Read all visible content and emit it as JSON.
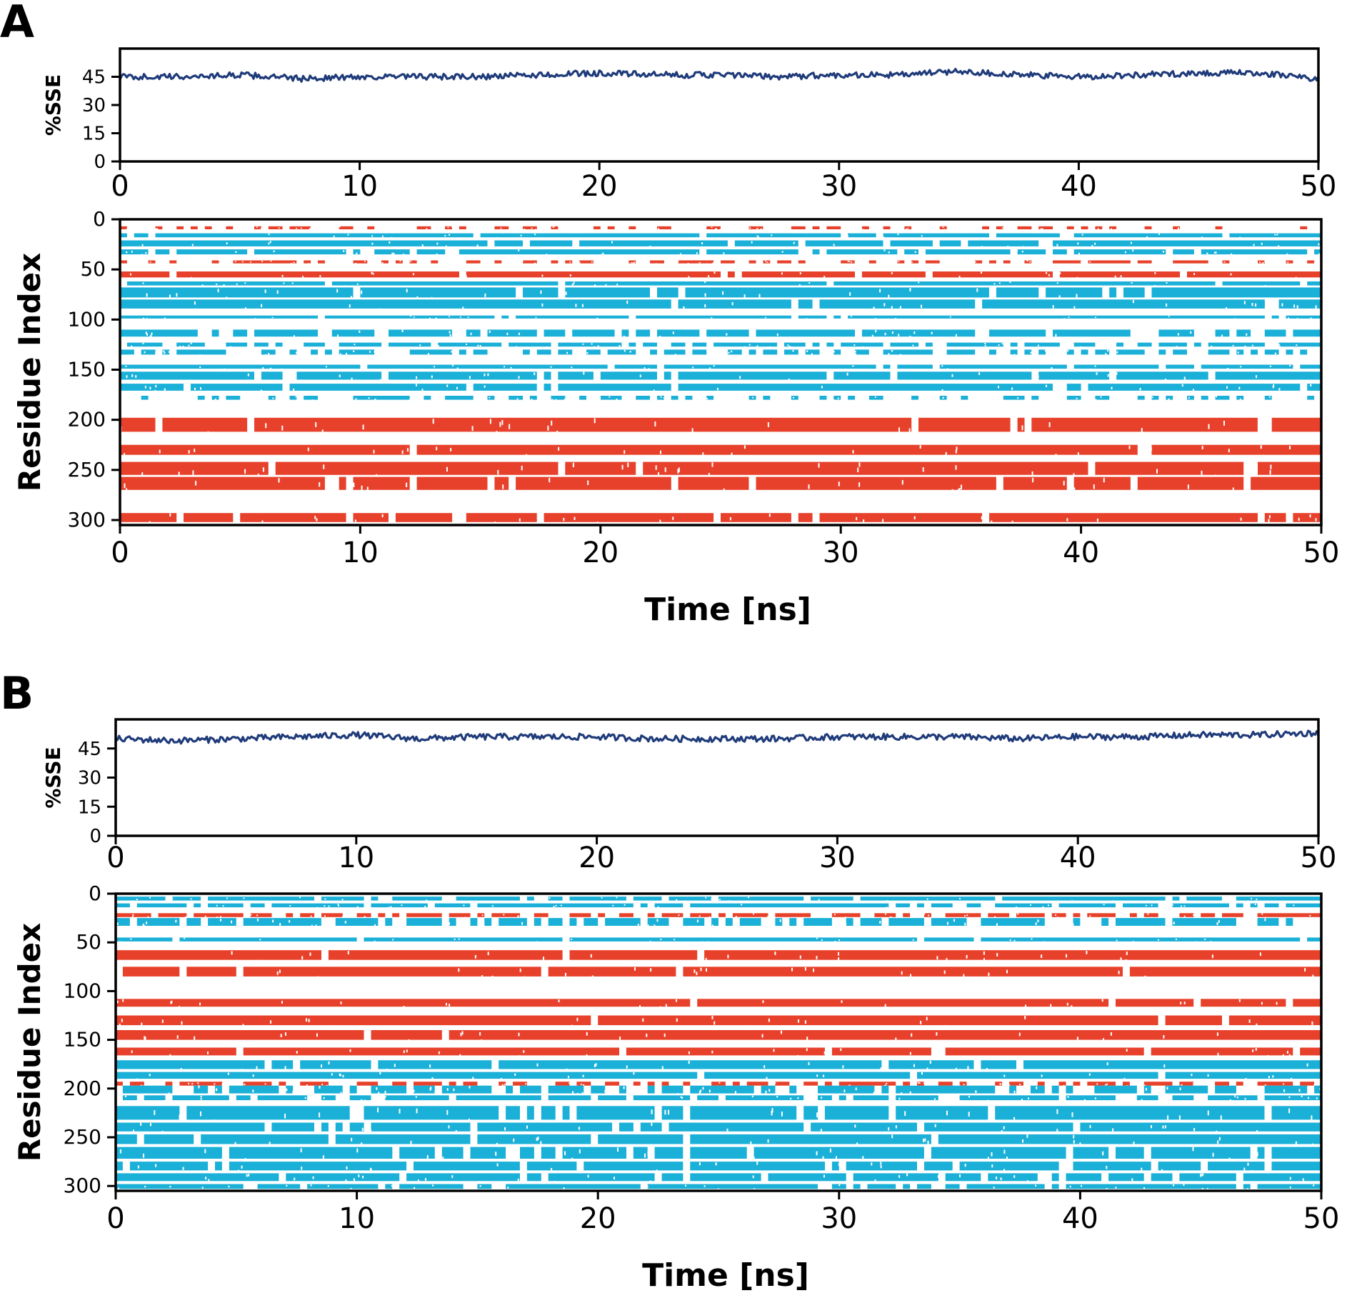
{
  "chart_data": [
    {
      "panel": "A",
      "type": "line",
      "x_ticks": [
        0,
        10,
        20,
        30,
        40,
        50
      ],
      "ylabel": "%SSE",
      "y_ticks": [
        0,
        15,
        30,
        45
      ],
      "xlim": [
        0,
        50
      ],
      "ylim": [
        0,
        60
      ],
      "series": [
        {
          "color": "#1f3b7a",
          "x": [
            0,
            2.5,
            5,
            7.5,
            10,
            12.5,
            15,
            17.5,
            20,
            22.5,
            25,
            27.5,
            30,
            32.5,
            35,
            37.5,
            40,
            42.5,
            45,
            47.5,
            50
          ],
          "y": [
            45,
            45,
            46,
            44,
            45,
            45,
            45,
            46,
            47,
            46,
            46,
            45,
            46,
            46,
            48,
            46,
            45,
            46,
            47,
            47,
            44
          ]
        }
      ]
    },
    {
      "panel": "A",
      "type": "heatmap",
      "xlabel": "Time [ns]",
      "ylabel": "Residue Index",
      "x_ticks": [
        0,
        10,
        20,
        30,
        40,
        50
      ],
      "y_ticks": [
        0,
        50,
        100,
        150,
        200,
        250,
        300
      ],
      "xlim": [
        0,
        50
      ],
      "ylim": [
        0,
        305
      ],
      "y_inverted": true,
      "legend_colors": {
        "helix": "#e8412b",
        "strand": "#1ab0d8"
      },
      "bands": [
        {
          "type": "helix",
          "start": 7,
          "end": 10,
          "density": 0.3
        },
        {
          "type": "strand",
          "start": 14,
          "end": 18,
          "density": 0.95
        },
        {
          "type": "strand",
          "start": 21,
          "end": 27,
          "density": 0.95
        },
        {
          "type": "strand",
          "start": 30,
          "end": 35,
          "density": 0.9
        },
        {
          "type": "helix",
          "start": 41,
          "end": 44,
          "density": 0.45
        },
        {
          "type": "helix",
          "start": 52,
          "end": 58,
          "density": 0.95
        },
        {
          "type": "strand",
          "start": 62,
          "end": 66,
          "density": 0.95
        },
        {
          "type": "strand",
          "start": 68,
          "end": 78,
          "density": 0.95
        },
        {
          "type": "strand",
          "start": 80,
          "end": 89,
          "density": 0.95
        },
        {
          "type": "strand",
          "start": 96,
          "end": 99,
          "density": 0.95
        },
        {
          "type": "strand",
          "start": 110,
          "end": 117,
          "density": 0.85
        },
        {
          "type": "strand",
          "start": 123,
          "end": 127,
          "density": 0.75
        },
        {
          "type": "strand",
          "start": 130,
          "end": 135,
          "density": 0.55
        },
        {
          "type": "strand",
          "start": 145,
          "end": 149,
          "density": 0.95
        },
        {
          "type": "strand",
          "start": 152,
          "end": 160,
          "density": 0.95
        },
        {
          "type": "strand",
          "start": 164,
          "end": 171,
          "density": 0.95
        },
        {
          "type": "strand",
          "start": 176,
          "end": 180,
          "density": 0.3
        },
        {
          "type": "helix",
          "start": 198,
          "end": 212,
          "density": 0.97
        },
        {
          "type": "helix",
          "start": 225,
          "end": 235,
          "density": 0.95
        },
        {
          "type": "helix",
          "start": 242,
          "end": 255,
          "density": 0.92
        },
        {
          "type": "helix",
          "start": 257,
          "end": 270,
          "density": 0.95
        },
        {
          "type": "helix",
          "start": 293,
          "end": 302,
          "density": 0.9
        }
      ]
    },
    {
      "panel": "B",
      "type": "line",
      "x_ticks": [
        0,
        10,
        20,
        30,
        40,
        50
      ],
      "ylabel": "%SSE",
      "y_ticks": [
        0,
        15,
        30,
        45
      ],
      "xlim": [
        0,
        50
      ],
      "ylim": [
        0,
        60
      ],
      "series": [
        {
          "color": "#1f3b7a",
          "x": [
            0,
            2.5,
            5,
            7.5,
            10,
            12.5,
            15,
            17.5,
            20,
            22.5,
            25,
            27.5,
            30,
            32.5,
            35,
            37.5,
            40,
            42.5,
            45,
            47.5,
            50
          ],
          "y": [
            50,
            49,
            50,
            51,
            52,
            50,
            51,
            51,
            51,
            50,
            50,
            50,
            51,
            51,
            51,
            50,
            51,
            51,
            52,
            52,
            53
          ]
        }
      ]
    },
    {
      "panel": "B",
      "type": "heatmap",
      "xlabel": "Time [ns]",
      "ylabel": "Residue Index",
      "x_ticks": [
        0,
        10,
        20,
        30,
        40,
        50
      ],
      "y_ticks": [
        0,
        50,
        100,
        150,
        200,
        250,
        300
      ],
      "xlim": [
        0,
        50
      ],
      "ylim": [
        0,
        305
      ],
      "y_inverted": true,
      "legend_colors": {
        "helix": "#e8412b",
        "strand": "#1ab0d8"
      },
      "bands": [
        {
          "type": "strand",
          "start": 3,
          "end": 7,
          "density": 0.9
        },
        {
          "type": "strand",
          "start": 10,
          "end": 14,
          "density": 0.85
        },
        {
          "type": "helix",
          "start": 20,
          "end": 24,
          "density": 0.7
        },
        {
          "type": "strand",
          "start": 25,
          "end": 33,
          "density": 0.7
        },
        {
          "type": "strand",
          "start": 45,
          "end": 49,
          "density": 0.95
        },
        {
          "type": "helix",
          "start": 58,
          "end": 68,
          "density": 0.95
        },
        {
          "type": "helix",
          "start": 75,
          "end": 85,
          "density": 0.97
        },
        {
          "type": "helix",
          "start": 108,
          "end": 116,
          "density": 0.97
        },
        {
          "type": "helix",
          "start": 125,
          "end": 135,
          "density": 0.97
        },
        {
          "type": "helix",
          "start": 140,
          "end": 150,
          "density": 0.97
        },
        {
          "type": "helix",
          "start": 158,
          "end": 166,
          "density": 0.97
        },
        {
          "type": "strand",
          "start": 171,
          "end": 180,
          "density": 0.95
        },
        {
          "type": "strand",
          "start": 183,
          "end": 190,
          "density": 0.95
        },
        {
          "type": "helix",
          "start": 193,
          "end": 197,
          "density": 0.55
        },
        {
          "type": "strand",
          "start": 197,
          "end": 205,
          "density": 0.7
        },
        {
          "type": "strand",
          "start": 207,
          "end": 212,
          "density": 0.8
        },
        {
          "type": "strand",
          "start": 218,
          "end": 232,
          "density": 0.95
        },
        {
          "type": "strand",
          "start": 235,
          "end": 244,
          "density": 0.95
        },
        {
          "type": "strand",
          "start": 247,
          "end": 257,
          "density": 0.95
        },
        {
          "type": "strand",
          "start": 260,
          "end": 272,
          "density": 0.92
        },
        {
          "type": "strand",
          "start": 275,
          "end": 284,
          "density": 0.92
        },
        {
          "type": "strand",
          "start": 287,
          "end": 295,
          "density": 0.9
        },
        {
          "type": "strand",
          "start": 298,
          "end": 303,
          "density": 0.85
        }
      ]
    }
  ],
  "panel_labels": {
    "a": "A",
    "b": "B"
  }
}
